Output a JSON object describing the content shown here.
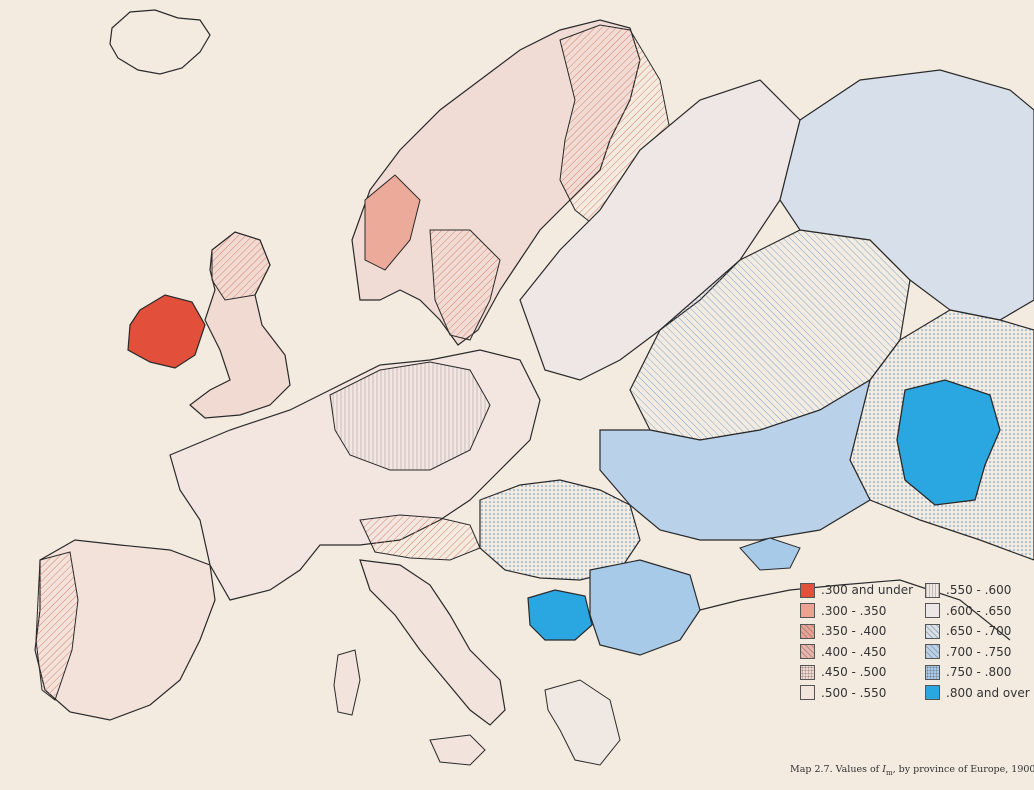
{
  "legend": {
    "items": [
      {
        "label": ".300 and under",
        "color": "#e2503c",
        "style": "solid"
      },
      {
        "label": ".300 - .350",
        "color": "#eca292",
        "style": "dense"
      },
      {
        "label": ".350 - .400",
        "color": "#e7a395",
        "style": "hatch"
      },
      {
        "label": ".400 - .450",
        "color": "#e9b5aa",
        "style": "hatch-light"
      },
      {
        "label": ".450 - .500",
        "color": "#f0d8d0",
        "style": "dots"
      },
      {
        "label": ".500 - .550",
        "color": "#f3e4dc",
        "style": "sparse"
      },
      {
        "label": ".550 - .600",
        "color": "#f0e8e2",
        "style": "lines-v"
      },
      {
        "label": ".600 - .650",
        "color": "#ece7e6",
        "style": "plain"
      },
      {
        "label": ".650 - .700",
        "color": "#d6dfea",
        "style": "hatch-blue"
      },
      {
        "label": ".700 - .750",
        "color": "#b9d2ea",
        "style": "hatch-blue-dense"
      },
      {
        "label": ".750 - .800",
        "color": "#a7cae9",
        "style": "dots-blue"
      },
      {
        "label": ".800 and over",
        "color": "#2aa6e0",
        "style": "solid"
      }
    ]
  },
  "caption": {
    "prefix": "Map 2.7.   Values of ",
    "symbol": "I",
    "subscript": "m",
    "suffix": ", by province of Europe, 1900."
  },
  "colors": {
    "background": "#f3ebe0",
    "border": "#2a2a2a",
    "red_strong": "#e2503c",
    "blue_strong": "#2aa6e0"
  }
}
